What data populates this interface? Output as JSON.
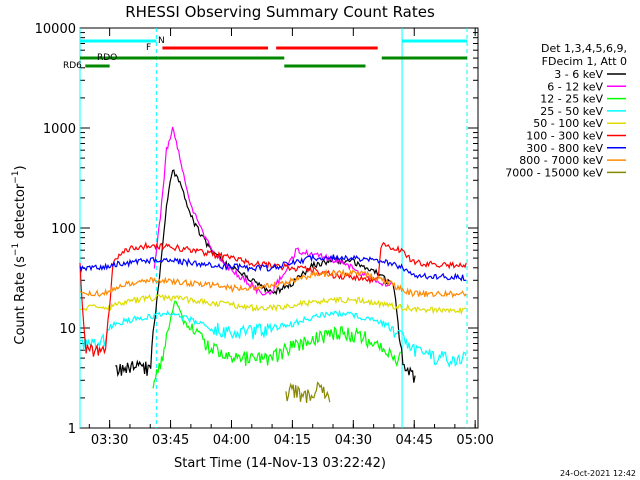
{
  "chart_data": {
    "type": "line",
    "title": "RHESSI Observing Summary Count Rates",
    "xlabel": "Start Time (14-Nov-13 03:22:42)",
    "ylabel": "Count Rate (s⁻¹ detector⁻¹)",
    "ylabel_main": "Count Rate (s",
    "ylabel_mid": " detector",
    "ylabel_end": ")",
    "ylabel_sup": "−1",
    "yscale": "log",
    "ylim": [
      1,
      10000
    ],
    "xlim": [
      "03:22:42",
      "05:00:42"
    ],
    "x_ticks": [
      "03:30",
      "03:45",
      "04:00",
      "04:15",
      "04:30",
      "04:45",
      "05:00"
    ],
    "y_ticks": [
      "1",
      "10",
      "100",
      "1000",
      "10000"
    ],
    "legend_header": [
      "Det 1,3,4,5,6,9,",
      "FDecim 1, Att 0"
    ],
    "legend_position": "right",
    "timestamp": "24-Oct-2021 12:42",
    "flags": {
      "N": {
        "label": "N",
        "color": "#00ffff",
        "segments": [
          [
            "03:22:42",
            "03:41:30"
          ],
          [
            "04:42:00",
            "04:58:00"
          ]
        ]
      },
      "F": {
        "label": "F",
        "color": "#ff0000",
        "segments": [
          [
            "03:43:00",
            "04:09:00"
          ],
          [
            "04:11:00",
            "04:36:00"
          ]
        ]
      },
      "RDO": {
        "label": "RDO",
        "color": "#008800",
        "segments": [
          [
            "03:22:42",
            "03:42:00"
          ],
          [
            "03:42:00",
            "04:13:00"
          ],
          [
            "04:37:00",
            "04:58:00"
          ]
        ]
      },
      "RD6": {
        "label": "RD6",
        "color": "#008800",
        "segments": [
          [
            "03:24:00",
            "03:30:00"
          ],
          [
            "04:13:00",
            "04:33:00"
          ]
        ]
      }
    },
    "vlines": [
      {
        "x": "03:22:42",
        "color": "#00ffff",
        "style": "solid"
      },
      {
        "x": "03:41:30",
        "color": "#00ffff",
        "style": "dashed"
      },
      {
        "x": "04:42:00",
        "color": "#00ffff",
        "style": "solid"
      },
      {
        "x": "04:58:00",
        "color": "#00ffff",
        "style": "dashed"
      }
    ],
    "series": [
      {
        "name": "3 - 6 keV",
        "color": "#000000",
        "points": [
          [
            "03:22:42",
            0
          ],
          [
            "03:31:00",
            0
          ],
          [
            "03:31:30",
            4
          ],
          [
            "03:40:00",
            4
          ],
          [
            "03:40:30",
            7
          ],
          [
            "03:43:00",
            60
          ],
          [
            "03:44:00",
            170
          ],
          [
            "03:45:30",
            380
          ],
          [
            "03:47:00",
            300
          ],
          [
            "03:50:00",
            130
          ],
          [
            "03:55:00",
            58
          ],
          [
            "04:00:00",
            40
          ],
          [
            "04:05:00",
            30
          ],
          [
            "04:10:00",
            22
          ],
          [
            "04:15:00",
            28
          ],
          [
            "04:20:00",
            42
          ],
          [
            "04:25:00",
            48
          ],
          [
            "04:30:00",
            46
          ],
          [
            "04:35:00",
            38
          ],
          [
            "04:40:00",
            26
          ],
          [
            "04:42:00",
            5
          ],
          [
            "04:45:00",
            3
          ],
          [
            "04:46:00",
            0
          ],
          [
            "05:00:42",
            0
          ]
        ]
      },
      {
        "name": "6 - 12 keV",
        "color": "#ff00ff",
        "points": [
          [
            "03:22:42",
            0
          ],
          [
            "03:40:30",
            0
          ],
          [
            "03:41:00",
            40
          ],
          [
            "03:43:00",
            200
          ],
          [
            "03:44:00",
            600
          ],
          [
            "03:45:30",
            980
          ],
          [
            "03:47:00",
            560
          ],
          [
            "03:50:00",
            170
          ],
          [
            "03:55:00",
            60
          ],
          [
            "04:00:00",
            38
          ],
          [
            "04:05:00",
            27
          ],
          [
            "04:08:00",
            21
          ],
          [
            "04:10:00",
            24
          ],
          [
            "04:14:00",
            42
          ],
          [
            "04:16:00",
            60
          ],
          [
            "04:20:00",
            55
          ],
          [
            "04:25:00",
            48
          ],
          [
            "04:30:00",
            40
          ],
          [
            "04:35:00",
            30
          ],
          [
            "04:38:00",
            28
          ],
          [
            "04:42:00",
            0
          ],
          [
            "05:00:42",
            0
          ]
        ]
      },
      {
        "name": "12 - 25 keV",
        "color": "#00ff00",
        "points": [
          [
            "03:22:42",
            0
          ],
          [
            "03:40:00",
            0
          ],
          [
            "03:41:00",
            3
          ],
          [
            "03:43:00",
            5
          ],
          [
            "03:45:00",
            12
          ],
          [
            "03:46:00",
            20
          ],
          [
            "03:48:00",
            12
          ],
          [
            "03:52:00",
            8
          ],
          [
            "03:56:00",
            6
          ],
          [
            "04:00:00",
            5
          ],
          [
            "04:05:00",
            5
          ],
          [
            "04:10:00",
            5
          ],
          [
            "04:13:00",
            6
          ],
          [
            "04:20:00",
            8
          ],
          [
            "04:27:00",
            9
          ],
          [
            "04:33:00",
            8
          ],
          [
            "04:38:00",
            6
          ],
          [
            "04:41:00",
            5
          ],
          [
            "04:42:30",
            0
          ],
          [
            "05:00:42",
            0
          ]
        ]
      },
      {
        "name": "25 - 50 keV",
        "color": "#00ffff",
        "points": [
          [
            "03:22:42",
            7
          ],
          [
            "03:28:00",
            7
          ],
          [
            "03:31:00",
            11
          ],
          [
            "03:35:00",
            12
          ],
          [
            "03:40:00",
            13
          ],
          [
            "03:45:00",
            14
          ],
          [
            "03:50:00",
            12
          ],
          [
            "03:55:00",
            10
          ],
          [
            "04:00:00",
            9
          ],
          [
            "04:05:00",
            9
          ],
          [
            "04:10:00",
            10
          ],
          [
            "04:15:00",
            11
          ],
          [
            "04:20:00",
            13
          ],
          [
            "04:27:00",
            14
          ],
          [
            "04:32:00",
            13
          ],
          [
            "04:38:00",
            11
          ],
          [
            "04:42:00",
            8
          ],
          [
            "04:45:00",
            6
          ],
          [
            "04:50:00",
            5
          ],
          [
            "04:58:00",
            5
          ]
        ]
      },
      {
        "name": "50 - 100 keV",
        "color": "#dddd00",
        "points": [
          [
            "03:22:42",
            16
          ],
          [
            "03:30:00",
            16
          ],
          [
            "03:33:00",
            18
          ],
          [
            "03:40:00",
            20
          ],
          [
            "03:45:00",
            20
          ],
          [
            "03:50:00",
            19
          ],
          [
            "03:55:00",
            18
          ],
          [
            "04:00:00",
            17
          ],
          [
            "04:05:00",
            16
          ],
          [
            "04:10:00",
            16
          ],
          [
            "04:15:00",
            17
          ],
          [
            "04:20:00",
            18
          ],
          [
            "04:27:00",
            19
          ],
          [
            "04:32:00",
            19
          ],
          [
            "04:38:00",
            17
          ],
          [
            "04:42:00",
            16
          ],
          [
            "04:50:00",
            15
          ],
          [
            "04:58:00",
            15
          ]
        ]
      },
      {
        "name": "100 - 300 keV",
        "color": "#ff0000",
        "points": [
          [
            "03:22:42",
            42
          ],
          [
            "03:24:00",
            6
          ],
          [
            "03:29:00",
            6
          ],
          [
            "03:31:00",
            50
          ],
          [
            "03:35:00",
            63
          ],
          [
            "03:40:00",
            67
          ],
          [
            "03:45:00",
            65
          ],
          [
            "03:50:00",
            60
          ],
          [
            "03:55:00",
            55
          ],
          [
            "04:00:00",
            50
          ],
          [
            "04:05:00",
            45
          ],
          [
            "04:10:00",
            42
          ],
          [
            "04:15:00",
            40
          ],
          [
            "04:20:00",
            38
          ],
          [
            "04:25:00",
            34
          ],
          [
            "04:30:00",
            32
          ],
          [
            "04:36:00",
            30
          ],
          [
            "04:37:00",
            70
          ],
          [
            "04:42:00",
            60
          ],
          [
            "04:45:00",
            45
          ],
          [
            "04:50:00",
            43
          ],
          [
            "04:58:00",
            42
          ]
        ]
      },
      {
        "name": "300 - 800 keV",
        "color": "#0000ff",
        "points": [
          [
            "03:22:42",
            40
          ],
          [
            "03:28:00",
            40
          ],
          [
            "03:31:00",
            43
          ],
          [
            "03:35:00",
            45
          ],
          [
            "03:40:00",
            48
          ],
          [
            "03:45:00",
            47
          ],
          [
            "03:50:00",
            45
          ],
          [
            "03:55:00",
            43
          ],
          [
            "04:00:00",
            41
          ],
          [
            "04:05:00",
            40
          ],
          [
            "04:10:00",
            40
          ],
          [
            "04:15:00",
            45
          ],
          [
            "04:20:00",
            50
          ],
          [
            "04:25:00",
            52
          ],
          [
            "04:30:00",
            50
          ],
          [
            "04:35:00",
            48
          ],
          [
            "04:38:00",
            46
          ],
          [
            "04:42:00",
            40
          ],
          [
            "04:45:00",
            34
          ],
          [
            "04:50:00",
            33
          ],
          [
            "04:58:00",
            32
          ]
        ]
      },
      {
        "name": "800 - 7000 keV",
        "color": "#ff8800",
        "points": [
          [
            "03:22:42",
            22
          ],
          [
            "03:28:00",
            22
          ],
          [
            "03:31:00",
            25
          ],
          [
            "03:35:00",
            28
          ],
          [
            "03:40:00",
            30
          ],
          [
            "03:45:00",
            29
          ],
          [
            "03:50:00",
            28
          ],
          [
            "03:55:00",
            27
          ],
          [
            "04:00:00",
            25
          ],
          [
            "04:05:00",
            25
          ],
          [
            "04:10:00",
            27
          ],
          [
            "04:15:00",
            30
          ],
          [
            "04:20:00",
            34
          ],
          [
            "04:27:00",
            36
          ],
          [
            "04:32:00",
            35
          ],
          [
            "04:38:00",
            30
          ],
          [
            "04:42:00",
            24
          ],
          [
            "04:45:00",
            22
          ],
          [
            "04:50:00",
            22
          ],
          [
            "04:58:00",
            22
          ]
        ]
      },
      {
        "name": "7000 - 15000 keV",
        "color": "#888800",
        "points": [
          [
            "03:22:42",
            0
          ],
          [
            "04:13:00",
            0
          ],
          [
            "04:13:30",
            2
          ],
          [
            "04:15:00",
            2.5
          ],
          [
            "04:18:00",
            2
          ],
          [
            "04:21:00",
            2.5
          ],
          [
            "04:24:00",
            2
          ],
          [
            "04:25:00",
            0
          ],
          [
            "05:00:42",
            0
          ]
        ]
      }
    ]
  }
}
